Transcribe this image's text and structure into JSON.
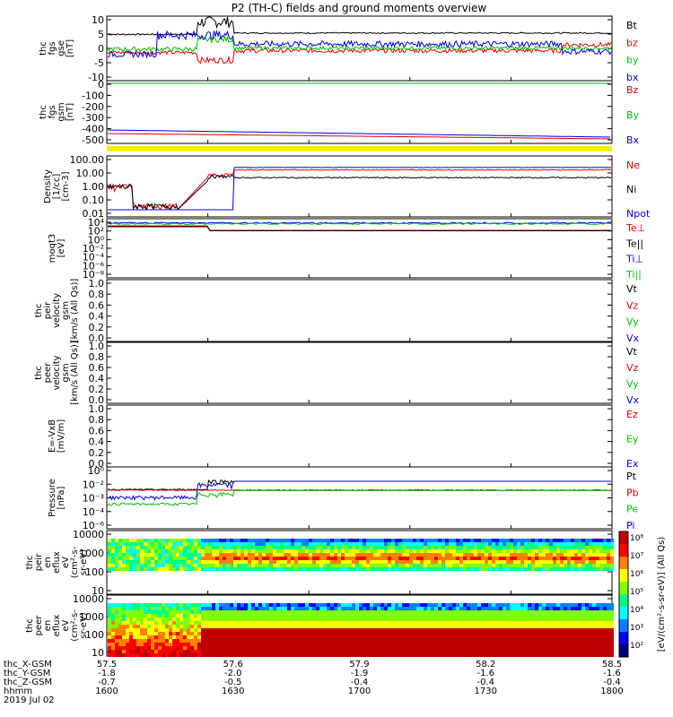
{
  "title": "P2 (TH-C) fields and ground moments overview",
  "colors": {
    "black": "#000000",
    "red": "#e00000",
    "green": "#00c000",
    "blue": "#0000e0",
    "yellow": "#f0f000"
  },
  "panels": [
    {
      "ylabel": [
        "thc",
        "fgs",
        "gse",
        "[nT]"
      ],
      "ticks": [
        "10",
        "5",
        "0",
        "-5",
        "-10"
      ],
      "legend": [
        {
          "text": "Bt",
          "color": "black"
        },
        {
          "text": "bz",
          "color": "red"
        },
        {
          "text": "by",
          "color": "green"
        },
        {
          "text": "bx",
          "color": "blue"
        }
      ]
    },
    {
      "ylabel": [
        "thc",
        "fgs",
        "gsm",
        "[nT]"
      ],
      "ticks": [
        "0",
        "-100",
        "-200",
        "-300",
        "-400",
        "-500"
      ],
      "legend": [
        {
          "text": "Bz",
          "color": "red"
        },
        {
          "text": "By",
          "color": "green"
        },
        {
          "text": "Bx",
          "color": "blue"
        }
      ]
    },
    {
      "ylabel": [
        "Density",
        "[1/cc]",
        "[cm-3]"
      ],
      "ticks": [
        "100.00",
        "10.00",
        "1.00",
        "0.10",
        "0.01"
      ],
      "legend": [
        {
          "text": "Ne",
          "color": "red"
        },
        {
          "text": "Ni",
          "color": "black"
        },
        {
          "text": "Npot",
          "color": "blue"
        }
      ]
    },
    {
      "ylabel": [
        "moqt3",
        "[eV]"
      ],
      "ticks": [
        "10⁴",
        "10²",
        "10⁰",
        "10⁻²",
        "10⁻⁴",
        "10⁻⁶",
        "10⁻⁸"
      ],
      "legend": [
        {
          "text": "Te⊥",
          "color": "red"
        },
        {
          "text": "Te||",
          "color": "black"
        },
        {
          "text": "Ti⊥",
          "color": "blue"
        },
        {
          "text": "Ti||",
          "color": "green"
        }
      ]
    },
    {
      "ylabel": [
        "thc",
        "peir",
        "velocity",
        "gsm",
        "[km/s (All Qs)]"
      ],
      "ticks": [
        "1.0",
        "0.8",
        "0.6",
        "0.4",
        "0.2",
        "0.0"
      ],
      "legend": [
        {
          "text": "Vt",
          "color": "black"
        },
        {
          "text": "Vz",
          "color": "red"
        },
        {
          "text": "Vy",
          "color": "green"
        },
        {
          "text": "Vx",
          "color": "blue"
        }
      ]
    },
    {
      "ylabel": [
        "thc",
        "peer",
        "velocity",
        "gsm",
        "[km/s (All Qs)]"
      ],
      "ticks": [
        "1.0",
        "0.8",
        "0.6",
        "0.4",
        "0.2",
        "0.0"
      ],
      "legend": [
        {
          "text": "Vt",
          "color": "black"
        },
        {
          "text": "Vz",
          "color": "red"
        },
        {
          "text": "Vy",
          "color": "green"
        },
        {
          "text": "Vx",
          "color": "blue"
        }
      ]
    },
    {
      "ylabel": [
        "E=-VxB",
        "[mV/m]"
      ],
      "ticks": [
        "1.0",
        "0.8",
        "0.6",
        "0.4",
        "0.2",
        "0.0"
      ],
      "legend": [
        {
          "text": "Ez",
          "color": "red"
        },
        {
          "text": "Ey",
          "color": "green"
        },
        {
          "text": "Ex",
          "color": "blue"
        }
      ]
    },
    {
      "ylabel": [
        "Pressure",
        "[nPa]"
      ],
      "ticks": [
        "10⁰",
        "10⁻²",
        "10⁻³",
        "10⁻⁴",
        "10⁻⁶"
      ],
      "legend": [
        {
          "text": "Pt",
          "color": "black"
        },
        {
          "text": "Pb",
          "color": "red"
        },
        {
          "text": "Pe",
          "color": "green"
        },
        {
          "text": "Pi",
          "color": "blue"
        }
      ]
    },
    {
      "ylabel": [
        "thc",
        "peir",
        "en",
        "eflux",
        "eV",
        "(cm²-s-",
        "sr-eV)"
      ],
      "ticks": [
        "10000",
        "1000",
        "100",
        "10"
      ]
    },
    {
      "ylabel": [
        "thc",
        "peer",
        "en",
        "eflux",
        "eV",
        "(cm²-s-",
        "sr-eV)"
      ],
      "ticks": [
        "10000",
        "1000",
        "100",
        "10"
      ]
    }
  ],
  "colorbar": {
    "ticks": [
      "10⁸",
      "10⁷",
      "10⁶",
      "10⁵",
      "10⁴",
      "10³",
      "10²"
    ],
    "label": "[eV/(cm²-s-sr-eV)] (All Qs)"
  },
  "xaxis": {
    "row_labels": [
      "thc_X-GSM",
      "thc_Y-GSM",
      "thc_Z-GSM",
      "hhmm",
      "2019 Jul 02"
    ],
    "columns": [
      {
        "vals": [
          "57.5",
          "-1.8",
          "-0.7",
          "1600"
        ]
      },
      {
        "vals": [
          "57.6",
          "-2.0",
          "-0.5",
          "1630"
        ]
      },
      {
        "vals": [
          "57.9",
          "-1.9",
          "-0.4",
          "1700"
        ]
      },
      {
        "vals": [
          "58.2",
          "-1.6",
          "-0.4",
          "1730"
        ]
      },
      {
        "vals": [
          "58.5",
          "-1.6",
          "-0.4",
          "1800"
        ]
      }
    ]
  },
  "chart_data": [
    {
      "type": "line",
      "title": "P2 (TH-C) fields and ground moments overview",
      "ylim": [
        -10,
        10
      ],
      "x": [
        "1600",
        "1630",
        "1700",
        "1730",
        "1800"
      ],
      "series": [
        {
          "name": "Bt",
          "values": [
            5,
            6,
            5,
            5,
            5
          ]
        },
        {
          "name": "bz",
          "values": [
            -2,
            -4,
            -1,
            -1,
            1
          ]
        },
        {
          "name": "by",
          "values": [
            -1,
            2,
            0,
            0,
            0
          ]
        },
        {
          "name": "bx",
          "values": [
            -3,
            4,
            1,
            -1,
            -3
          ]
        }
      ]
    },
    {
      "type": "line",
      "ylim": [
        -550,
        0
      ],
      "series": [
        {
          "name": "Bz",
          "values": [
            -460,
            -465,
            -470,
            -475,
            -480
          ]
        },
        {
          "name": "By",
          "values": [
            -10,
            -10,
            -10,
            -10,
            -10
          ]
        },
        {
          "name": "Bx",
          "values": [
            -420,
            -430,
            -440,
            -450,
            -460
          ]
        }
      ]
    },
    {
      "type": "line",
      "scale": "log",
      "ylim": [
        0.005,
        200
      ],
      "series": [
        {
          "name": "Ne",
          "values": [
            0.01,
            8,
            15,
            15,
            18
          ]
        },
        {
          "name": "Ni",
          "values": [
            0.01,
            5,
            4,
            4,
            4
          ]
        },
        {
          "name": "Npot",
          "values": [
            0.01,
            10,
            30,
            30,
            30
          ]
        }
      ]
    },
    {
      "type": "line",
      "scale": "log",
      "series": [
        {
          "name": "Te⊥",
          "values": [
            1000,
            300,
            300,
            300,
            300
          ]
        },
        {
          "name": "Te||",
          "values": [
            1000,
            300,
            300,
            300,
            300
          ]
        },
        {
          "name": "Ti⊥",
          "values": [
            5000,
            4000,
            4000,
            4000,
            4000
          ]
        },
        {
          "name": "Ti||",
          "values": [
            5000,
            4000,
            4000,
            4000,
            4000
          ]
        }
      ]
    },
    {
      "type": "line",
      "scale": "log",
      "series": [
        {
          "name": "Pt",
          "values": [
            0.01,
            0.1,
            0.1,
            0.1,
            0.1
          ]
        },
        {
          "name": "Pb",
          "values": [
            0.008,
            0.008,
            0.008,
            0.008,
            0.008
          ]
        },
        {
          "name": "Pe",
          "values": [
            0.0001,
            0.008,
            0.008,
            0.008,
            0.008
          ]
        },
        {
          "name": "Pi",
          "values": [
            0.0005,
            0.1,
            0.1,
            0.1,
            0.1
          ]
        }
      ]
    },
    {
      "type": "heatmap",
      "ylim": [
        5,
        20000
      ]
    },
    {
      "type": "heatmap",
      "ylim": [
        5,
        20000
      ]
    }
  ]
}
